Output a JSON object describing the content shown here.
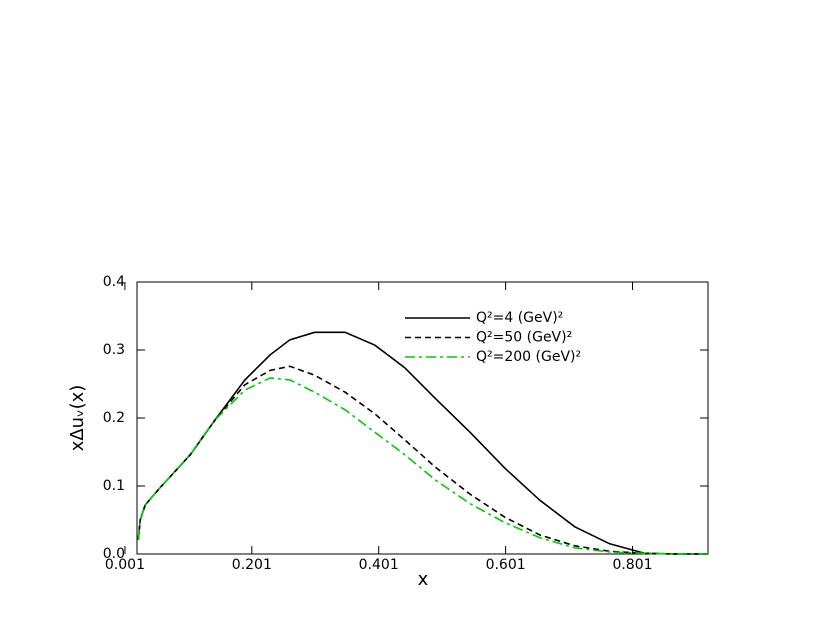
{
  "chart_data": {
    "type": "line",
    "xlabel": "x",
    "ylabel": "xΔuᵥ(x)",
    "x": [
      0.022,
      0.025,
      0.033,
      0.056,
      0.104,
      0.143,
      0.19,
      0.23,
      0.261,
      0.3,
      0.348,
      0.395,
      0.442,
      0.49,
      0.545,
      0.6,
      0.655,
      0.71,
      0.765,
      0.82,
      0.868,
      0.92
    ],
    "series": [
      {
        "name": "Q²=4 (GeV)²",
        "color": "#000000",
        "dash": "solid",
        "values": [
          0.021,
          0.05,
          0.072,
          0.097,
          0.146,
          0.197,
          0.256,
          0.293,
          0.315,
          0.326,
          0.326,
          0.307,
          0.274,
          0.229,
          0.179,
          0.126,
          0.079,
          0.04,
          0.015,
          0.001,
          0,
          0
        ]
      },
      {
        "name": "Q²=50 (GeV)²",
        "color": "#000000",
        "dash": "dashed",
        "values": [
          0.021,
          0.05,
          0.072,
          0.097,
          0.146,
          0.197,
          0.249,
          0.27,
          0.276,
          0.263,
          0.238,
          0.206,
          0.168,
          0.128,
          0.088,
          0.054,
          0.028,
          0.012,
          0.004,
          0.001,
          0,
          0
        ]
      },
      {
        "name": "Q²=200 (GeV)²",
        "color": "#00cc00",
        "dash": "dashdot",
        "values": [
          0.021,
          0.05,
          0.072,
          0.097,
          0.146,
          0.197,
          0.241,
          0.259,
          0.256,
          0.238,
          0.212,
          0.179,
          0.146,
          0.109,
          0.074,
          0.046,
          0.024,
          0.009,
          0.003,
          0.001,
          0,
          0
        ]
      }
    ],
    "xlim": [
      0.02,
      0.92
    ],
    "ylim": [
      0,
      0.4
    ],
    "xticks": [
      0.001,
      0.201,
      0.401,
      0.601,
      0.801
    ],
    "yticks": [
      {
        "value": 0,
        "label": "0.0"
      },
      0.1,
      0.2,
      0.3,
      0.4
    ],
    "grid": false,
    "legend": "upper right"
  }
}
